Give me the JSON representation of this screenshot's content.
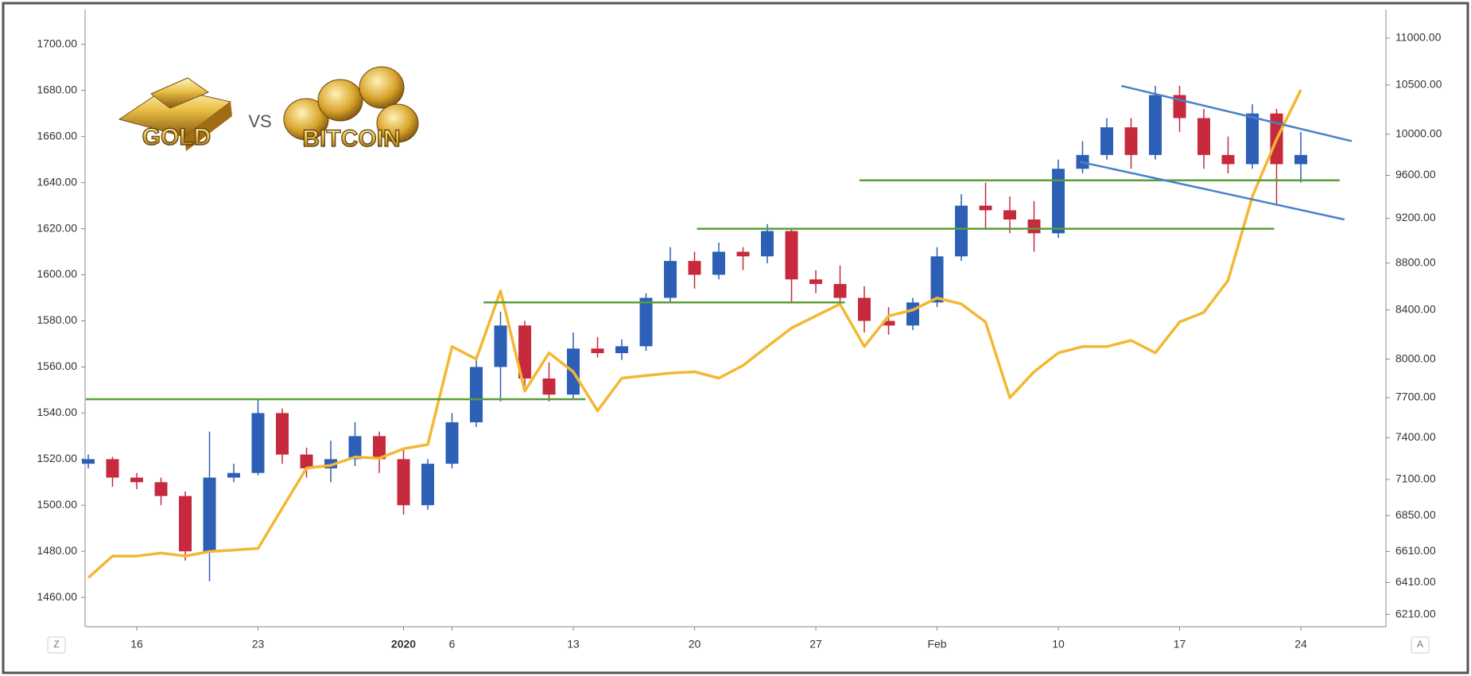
{
  "chart_data": {
    "type": "candlestick",
    "logo": {
      "left": "GOLD",
      "middle": "VS",
      "right": "BITCOIN"
    },
    "corner_left": "Z",
    "corner_right": "A",
    "categories": [
      null,
      null,
      "16",
      null,
      null,
      null,
      null,
      "23",
      null,
      null,
      null,
      null,
      null,
      "2020",
      null,
      "6",
      null,
      null,
      null,
      null,
      "13",
      null,
      null,
      null,
      null,
      "20",
      null,
      null,
      null,
      null,
      "27",
      null,
      null,
      null,
      null,
      "Feb",
      null,
      null,
      null,
      null,
      "10",
      null,
      null,
      null,
      null,
      "17",
      null,
      null,
      null,
      null,
      "24"
    ],
    "series": [
      {
        "type": "candlestick",
        "up_color": "#2c5fb5",
        "down_color": "#c62a3c",
        "open": [
          1518,
          1520,
          1512,
          1510,
          1504,
          1480,
          1512,
          1514,
          1540,
          1522,
          1516,
          1520,
          1530,
          1520,
          1500,
          1518,
          1536,
          1560,
          1578,
          1555,
          1548,
          1568,
          1566,
          1569,
          1590,
          1606,
          1600,
          1610,
          1608,
          1619,
          1598,
          1596,
          1590,
          1580,
          1578,
          1588,
          1608,
          1630,
          1628,
          1624,
          1618,
          1646,
          1652,
          1664,
          1652,
          1678,
          1668,
          1652,
          1648,
          1670,
          1648
        ],
        "high": [
          1522,
          1521,
          1514,
          1512,
          1506,
          1532,
          1518,
          1546,
          1542,
          1525,
          1528,
          1536,
          1532,
          1524,
          1520,
          1540,
          1565,
          1584,
          1580,
          1562,
          1575,
          1573,
          1572,
          1592,
          1612,
          1610,
          1614,
          1612,
          1622,
          1620,
          1602,
          1604,
          1595,
          1586,
          1590,
          1612,
          1635,
          1640,
          1634,
          1632,
          1650,
          1658,
          1668,
          1668,
          1682,
          1682,
          1672,
          1660,
          1674,
          1672,
          1662
        ],
        "low": [
          1516,
          1508,
          1507,
          1500,
          1476,
          1467,
          1510,
          1513,
          1518,
          1512,
          1510,
          1517,
          1514,
          1496,
          1498,
          1516,
          1534,
          1545,
          1550,
          1545,
          1546,
          1564,
          1563,
          1567,
          1588,
          1594,
          1598,
          1602,
          1605,
          1588,
          1592,
          1588,
          1575,
          1574,
          1576,
          1586,
          1606,
          1620,
          1618,
          1610,
          1616,
          1644,
          1650,
          1646,
          1650,
          1662,
          1646,
          1644,
          1646,
          1630,
          1640
        ],
        "close": [
          1520,
          1512,
          1510,
          1504,
          1480,
          1512,
          1514,
          1540,
          1522,
          1516,
          1520,
          1530,
          1520,
          1500,
          1518,
          1536,
          1560,
          1578,
          1555,
          1548,
          1568,
          1566,
          1569,
          1590,
          1606,
          1600,
          1610,
          1608,
          1619,
          1598,
          1596,
          1590,
          1580,
          1578,
          1588,
          1608,
          1630,
          1628,
          1624,
          1618,
          1646,
          1652,
          1664,
          1652,
          1678,
          1668,
          1652,
          1648,
          1670,
          1648,
          1652
        ]
      },
      {
        "type": "line",
        "axis": "y2",
        "color": "#f4b731",
        "values": [
          6440,
          6580,
          6580,
          6600,
          6580,
          6610,
          6620,
          6630,
          6900,
          7180,
          7200,
          7260,
          7250,
          7320,
          7350,
          8100,
          8000,
          8560,
          7750,
          8050,
          7900,
          7600,
          7850,
          7870,
          7890,
          7900,
          7850,
          7950,
          8100,
          8250,
          8350,
          8450,
          8100,
          8350,
          8400,
          8500,
          8450,
          8300,
          7700,
          7900,
          8050,
          8100,
          8100,
          8150,
          8050,
          8300,
          8380,
          8650,
          9400,
          9950,
          10450
        ]
      }
    ],
    "levels": [
      1546,
      1588,
      1620,
      1641
    ],
    "level_color": "#5a9e3a",
    "channel": [
      {
        "start": 1682,
        "end": 1658
      },
      {
        "start": 1649,
        "end": 1624
      }
    ],
    "channel_color": "#4a82c8",
    "ylim": [
      1447.3,
      1715.1
    ],
    "yticks": [
      {
        "value": 1460,
        "label": "1460.00"
      },
      {
        "value": 1480,
        "label": "1480.00"
      },
      {
        "value": 1500,
        "label": "1500.00"
      },
      {
        "value": 1520,
        "label": "1520.00"
      },
      {
        "value": 1540,
        "label": "1540.00"
      },
      {
        "value": 1560,
        "label": "1560.00"
      },
      {
        "value": 1580,
        "label": "1580.00"
      },
      {
        "value": 1600,
        "label": "1600.00"
      },
      {
        "value": 1620,
        "label": "1620.00"
      },
      {
        "value": 1640,
        "label": "1640.00"
      },
      {
        "value": 1660,
        "label": "1660.00"
      },
      {
        "value": 1680,
        "label": "1680.00"
      },
      {
        "value": 1700,
        "label": "1700.00"
      }
    ],
    "y2lim": [
      6135,
      11316
    ],
    "y2scale": "log",
    "y2ticks": [
      {
        "value": 6210,
        "label": "6210.00"
      },
      {
        "value": 6410,
        "label": "6410.00"
      },
      {
        "value": 6610,
        "label": "6610.00"
      },
      {
        "value": 6850,
        "label": "6850.00"
      },
      {
        "value": 7100,
        "label": "7100.00"
      },
      {
        "value": 7400,
        "label": "7400.00"
      },
      {
        "value": 7700,
        "label": "7700.00"
      },
      {
        "value": 8000,
        "label": "8000.00"
      },
      {
        "value": 8400,
        "label": "8400.00"
      },
      {
        "value": 8800,
        "label": "8800.00"
      },
      {
        "value": 9200,
        "label": "9200.00"
      },
      {
        "value": 9600,
        "label": "9600.00"
      },
      {
        "value": 10000,
        "label": "10000.00"
      },
      {
        "value": 10500,
        "label": "10500.00"
      },
      {
        "value": 11000,
        "label": "11000.00"
      }
    ]
  }
}
